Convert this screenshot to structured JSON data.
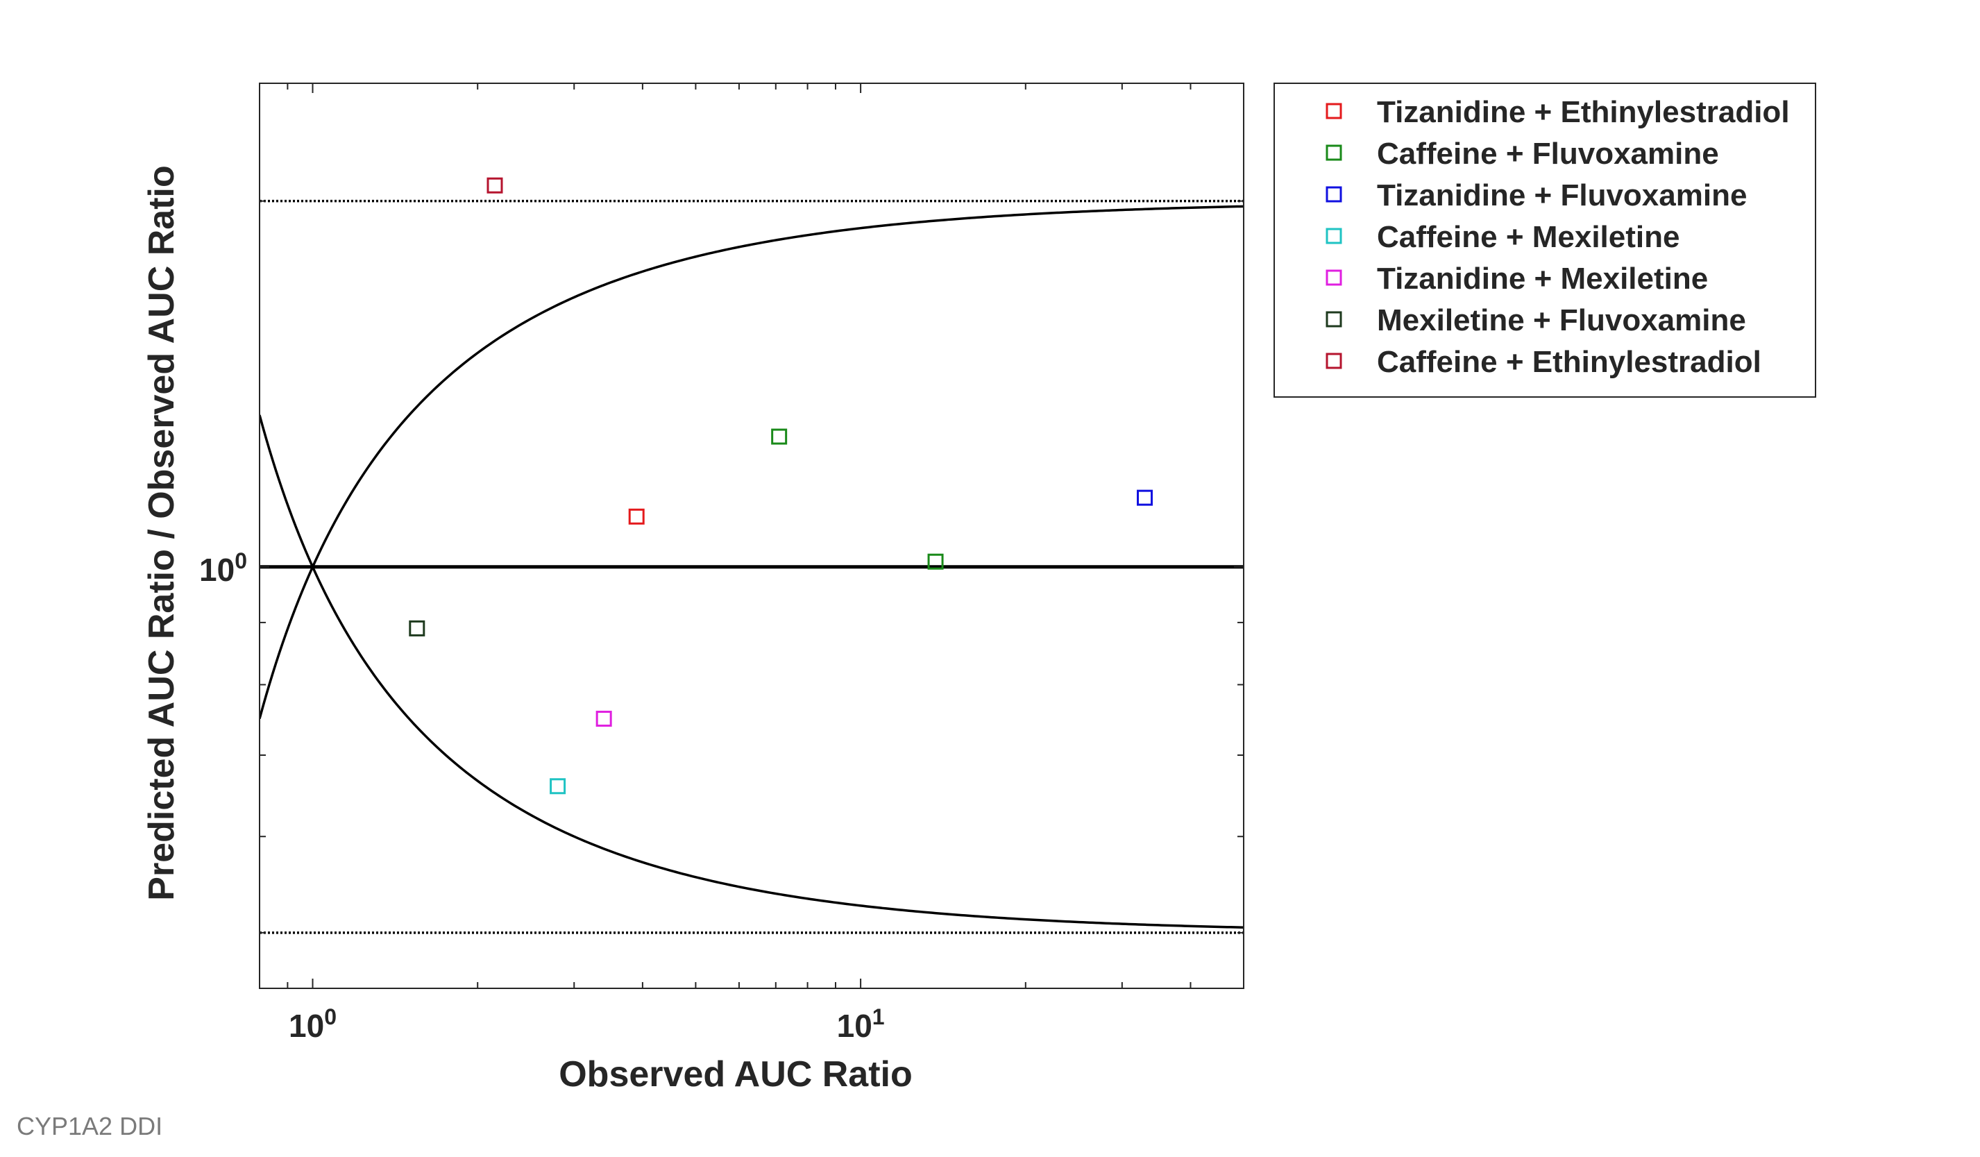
{
  "caption": "CYP1A2 DDI",
  "chart_data": {
    "type": "scatter",
    "xlabel": "Observed AUC Ratio",
    "ylabel": "Predicted AUC Ratio / Observed AUC Ratio",
    "xscale": "log",
    "yscale": "log",
    "xlim": [
      0.8,
      50
    ],
    "ylim": [
      0.45,
      2.5
    ],
    "xticks": [
      {
        "value": 1,
        "base": "10",
        "exp": "0"
      },
      {
        "value": 10,
        "base": "10",
        "exp": "1"
      }
    ],
    "yticks": [
      {
        "value": 1,
        "base": "10",
        "exp": "0"
      }
    ],
    "grid": false,
    "legend_position": "outside-right",
    "reference_lines": {
      "unity": 1,
      "limit_upper": 2,
      "limit_lower": 0.5,
      "guest_curves": "upper = (1 + 2(R-1))/R, lower = 1/upper"
    },
    "series": [
      {
        "name": "Tizanidine + Ethinylestradiol",
        "color": "#e41a1c",
        "points": [
          {
            "x": 3.9,
            "y": 1.1
          }
        ]
      },
      {
        "name": "Caffeine + Fluvoxamine",
        "color": "#1a8a1a",
        "points": [
          {
            "x": 7.1,
            "y": 1.28
          },
          {
            "x": 13.7,
            "y": 1.01
          }
        ]
      },
      {
        "name": "Tizanidine + Fluvoxamine",
        "color": "#1010e0",
        "points": [
          {
            "x": 33,
            "y": 1.14
          }
        ]
      },
      {
        "name": "Caffeine + Mexiletine",
        "color": "#1fc3c3",
        "points": [
          {
            "x": 2.8,
            "y": 0.66
          }
        ]
      },
      {
        "name": "Tizanidine + Mexiletine",
        "color": "#e01fe0",
        "points": [
          {
            "x": 3.4,
            "y": 0.75
          }
        ]
      },
      {
        "name": "Mexiletine + Fluvoxamine",
        "color": "#1e3a1e",
        "points": [
          {
            "x": 1.55,
            "y": 0.89
          }
        ]
      },
      {
        "name": "Caffeine + Ethinylestradiol",
        "color": "#b5142e",
        "points": [
          {
            "x": 2.15,
            "y": 2.06
          }
        ]
      }
    ]
  }
}
